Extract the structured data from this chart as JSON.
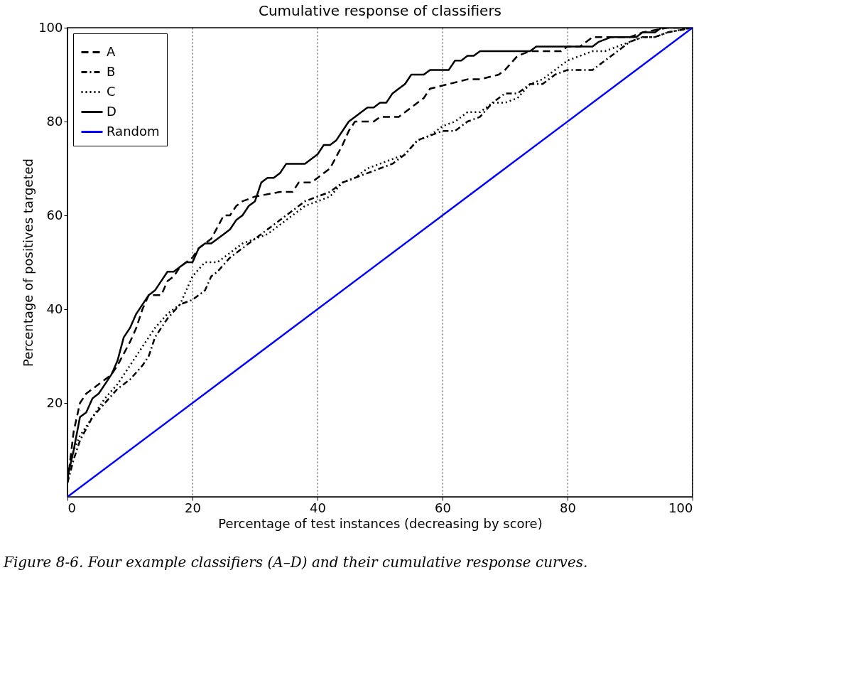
{
  "chart_data": {
    "type": "line",
    "title": "Cumulative response of classifiers",
    "xlabel": "Percentage of test instances (decreasing by score)",
    "ylabel": "Percentage of positives targeted",
    "xlim": [
      0,
      100
    ],
    "ylim": [
      0,
      100
    ],
    "xticks": [
      0,
      20,
      40,
      60,
      80,
      100
    ],
    "yticks": [
      20,
      40,
      60,
      80,
      100
    ],
    "grid": "x",
    "legend": "top left",
    "marker": "none",
    "annotations": [
      "Figure 8-6. Four example classifiers (A–D) and their cumulative response curves."
    ],
    "series": [
      {
        "name": "A",
        "color": "#000000",
        "line_style": "dashed",
        "x": [
          0,
          1,
          2,
          3,
          5,
          7,
          8,
          10,
          11,
          12,
          13,
          15,
          16,
          17,
          18,
          19,
          20,
          21,
          23,
          25,
          26,
          27,
          28,
          30,
          34,
          36,
          37,
          39,
          40,
          42,
          44,
          45,
          46,
          49,
          50,
          53,
          55,
          57,
          58,
          61,
          64,
          66,
          69,
          70,
          72,
          74,
          79,
          80,
          82,
          84,
          90,
          92,
          96,
          100
        ],
        "values": [
          3,
          14,
          20,
          22,
          24,
          26,
          28,
          33,
          36,
          40,
          43,
          43,
          46,
          47,
          49,
          50,
          51,
          53,
          55,
          60,
          60,
          62,
          63,
          64,
          65,
          65,
          67,
          67,
          68,
          70,
          75,
          78,
          80,
          80,
          81,
          81,
          83,
          85,
          87,
          88,
          89,
          89,
          90,
          91,
          94,
          95,
          95,
          96,
          96,
          98,
          98,
          99,
          100,
          100
        ]
      },
      {
        "name": "B",
        "color": "#000000",
        "line_style": "dashdot",
        "x": [
          0,
          1,
          2,
          4,
          6,
          8,
          10,
          12,
          13,
          14,
          16,
          18,
          20,
          22,
          23,
          24,
          26,
          28,
          30,
          32,
          34,
          36,
          38,
          40,
          42,
          44,
          46,
          48,
          50,
          52,
          54,
          56,
          58,
          60,
          62,
          64,
          66,
          68,
          70,
          72,
          74,
          76,
          78,
          80,
          84,
          86,
          88,
          90,
          92,
          94,
          96,
          100
        ],
        "values": [
          3,
          8,
          12,
          17,
          20,
          23,
          25,
          28,
          30,
          34,
          38,
          41,
          42,
          44,
          47,
          48,
          51,
          53,
          55,
          57,
          59,
          61,
          63,
          64,
          65,
          67,
          68,
          69,
          70,
          71,
          73,
          76,
          77,
          78,
          78,
          80,
          81,
          84,
          86,
          86,
          88,
          88,
          90,
          91,
          91,
          93,
          95,
          97,
          98,
          98,
          99,
          100
        ]
      },
      {
        "name": "C",
        "color": "#000000",
        "line_style": "dotted",
        "x": [
          0,
          1,
          2,
          4,
          6,
          8,
          10,
          12,
          14,
          16,
          18,
          20,
          22,
          24,
          26,
          28,
          30,
          32,
          34,
          36,
          38,
          40,
          42,
          44,
          46,
          48,
          50,
          52,
          54,
          56,
          58,
          60,
          62,
          64,
          66,
          68,
          70,
          72,
          74,
          76,
          78,
          80,
          82,
          84,
          86,
          88,
          90,
          92,
          94,
          96,
          100
        ],
        "values": [
          5,
          10,
          13,
          17,
          21,
          24,
          28,
          32,
          36,
          39,
          41,
          47,
          50,
          50,
          52,
          54,
          55,
          56,
          58,
          60,
          62,
          63,
          64,
          67,
          68,
          70,
          71,
          72,
          73,
          76,
          77,
          79,
          80,
          82,
          82,
          84,
          84,
          85,
          88,
          89,
          91,
          93,
          94,
          95,
          95,
          96,
          97,
          98,
          98,
          99,
          100
        ]
      },
      {
        "name": "D",
        "color": "#000000",
        "line_style": "solid",
        "x": [
          0,
          1,
          2,
          3,
          4,
          5,
          6,
          7,
          8,
          9,
          10,
          11,
          12,
          13,
          14,
          15,
          16,
          17,
          18,
          19,
          20,
          21,
          22,
          23,
          24,
          25,
          26,
          27,
          28,
          29,
          30,
          31,
          32,
          33,
          34,
          35,
          38,
          39,
          40,
          41,
          42,
          43,
          44,
          45,
          46,
          47,
          48,
          49,
          50,
          51,
          52,
          53,
          54,
          55,
          57,
          58,
          61,
          62,
          63,
          64,
          65,
          66,
          74,
          75,
          84,
          85,
          87,
          91,
          92,
          94,
          95,
          100
        ],
        "values": [
          4,
          10,
          17,
          18,
          21,
          22,
          24,
          26,
          29,
          34,
          36,
          39,
          41,
          43,
          44,
          46,
          48,
          48,
          49,
          50,
          50,
          53,
          54,
          54,
          55,
          56,
          57,
          59,
          60,
          62,
          63,
          67,
          68,
          68,
          69,
          71,
          71,
          72,
          73,
          75,
          75,
          76,
          78,
          80,
          81,
          82,
          83,
          83,
          84,
          84,
          86,
          87,
          88,
          90,
          90,
          91,
          91,
          93,
          93,
          94,
          94,
          95,
          95,
          96,
          96,
          97,
          98,
          98,
          99,
          99,
          100,
          100
        ]
      },
      {
        "name": "Random",
        "color": "#0000ff",
        "line_style": "solid",
        "x": [
          0,
          100
        ],
        "values": [
          0,
          100
        ]
      }
    ]
  }
}
